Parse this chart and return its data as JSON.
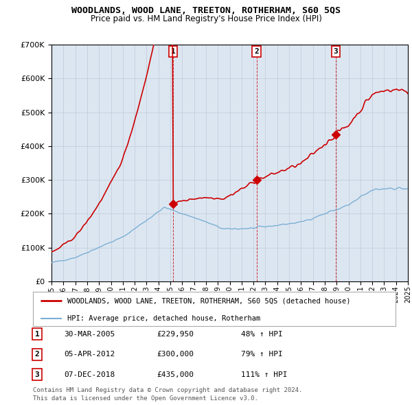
{
  "title": "WOODLANDS, WOOD LANE, TREETON, ROTHERHAM, S60 5QS",
  "subtitle": "Price paid vs. HM Land Registry's House Price Index (HPI)",
  "x_start_year": 1995,
  "x_end_year": 2025,
  "ylim": [
    0,
    700000
  ],
  "yticks": [
    0,
    100000,
    200000,
    300000,
    400000,
    500000,
    600000,
    700000
  ],
  "sales": [
    {
      "year": 2005.24,
      "price": 229950,
      "label": "1"
    },
    {
      "year": 2012.26,
      "price": 300000,
      "label": "2"
    },
    {
      "year": 2018.93,
      "price": 435000,
      "label": "3"
    }
  ],
  "legend_line1": "WOODLANDS, WOOD LANE, TREETON, ROTHERHAM, S60 5QS (detached house)",
  "legend_line2": "HPI: Average price, detached house, Rotherham",
  "table_rows": [
    {
      "num": "1",
      "date": "30-MAR-2005",
      "price": "£229,950",
      "hpi": "48% ↑ HPI"
    },
    {
      "num": "2",
      "date": "05-APR-2012",
      "price": "£300,000",
      "hpi": "79% ↑ HPI"
    },
    {
      "num": "3",
      "date": "07-DEC-2018",
      "price": "£435,000",
      "hpi": "111% ↑ HPI"
    }
  ],
  "footnote1": "Contains HM Land Registry data © Crown copyright and database right 2024.",
  "footnote2": "This data is licensed under the Open Government Licence v3.0.",
  "bg_color": "#dce6f1",
  "plot_bg_color": "#ffffff",
  "grid_color": "#c0c8d8",
  "vline_color": "#cc0000",
  "red_line_color": "#cc0000",
  "blue_line_color": "#7bafd4"
}
